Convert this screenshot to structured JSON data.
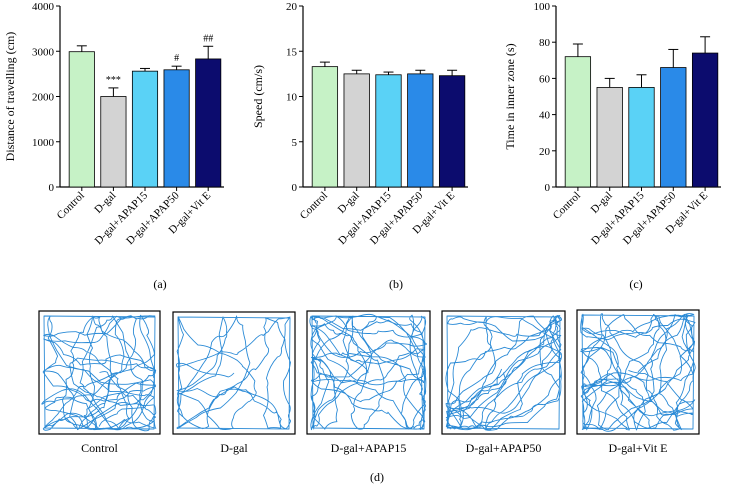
{
  "figure_colors": {
    "axis": "#000000",
    "track": "#2a8ad6",
    "error_bar": "#000000"
  },
  "chart_data": [
    {
      "type": "bar",
      "panel_label": "(a)",
      "ylabel": "Distance of travelling (cm)",
      "xlabel": "",
      "ylim": [
        0,
        4000
      ],
      "yticks": [
        0,
        1000,
        2000,
        3000,
        4000
      ],
      "categories": [
        "Control",
        "D-gal",
        "D-gal+APAP15",
        "D-gal+APAP50",
        "D-gal+Vit E"
      ],
      "values": [
        2990,
        2000,
        2560,
        2590,
        2830
      ],
      "errors": [
        130,
        190,
        60,
        80,
        280
      ],
      "colors": [
        "#c6f2c6",
        "#d3d3d3",
        "#5ad2f6",
        "#2a8ae8",
        "#0c0c6e"
      ],
      "annotations": [
        "",
        "***",
        "",
        "#",
        "##"
      ]
    },
    {
      "type": "bar",
      "panel_label": "(b)",
      "ylabel": "Speed (cm/s)",
      "xlabel": "",
      "ylim": [
        0,
        20
      ],
      "yticks": [
        0,
        5,
        10,
        15,
        20
      ],
      "categories": [
        "Control",
        "D-gal",
        "D-gal+APAP15",
        "D-gal+APAP50",
        "D-gal+Vit E"
      ],
      "values": [
        13.3,
        12.5,
        12.4,
        12.5,
        12.3
      ],
      "errors": [
        0.5,
        0.4,
        0.3,
        0.4,
        0.6
      ],
      "colors": [
        "#c6f2c6",
        "#d3d3d3",
        "#5ad2f6",
        "#2a8ae8",
        "#0c0c6e"
      ],
      "annotations": [
        "",
        "",
        "",
        "",
        ""
      ]
    },
    {
      "type": "bar",
      "panel_label": "(c)",
      "ylabel": "Time in inner zone (s)",
      "xlabel": "",
      "ylim": [
        0,
        100
      ],
      "yticks": [
        0,
        20,
        40,
        60,
        80,
        100
      ],
      "categories": [
        "Control",
        "D-gal",
        "D-gal+APAP15",
        "D-gal+APAP50",
        "D-gal+Vit E"
      ],
      "values": [
        72,
        55,
        55,
        66,
        74
      ],
      "errors": [
        7,
        5,
        7,
        10,
        9
      ],
      "colors": [
        "#c6f2c6",
        "#d3d3d3",
        "#5ad2f6",
        "#2a8ae8",
        "#0c0c6e"
      ],
      "annotations": [
        "",
        "",
        "",
        "",
        ""
      ]
    }
  ],
  "tracks_panel": {
    "panel_label": "(d)",
    "labels": [
      "Control",
      "D-gal",
      "D-gal+APAP15",
      "D-gal+APAP50",
      "D-gal+Vit E"
    ]
  }
}
